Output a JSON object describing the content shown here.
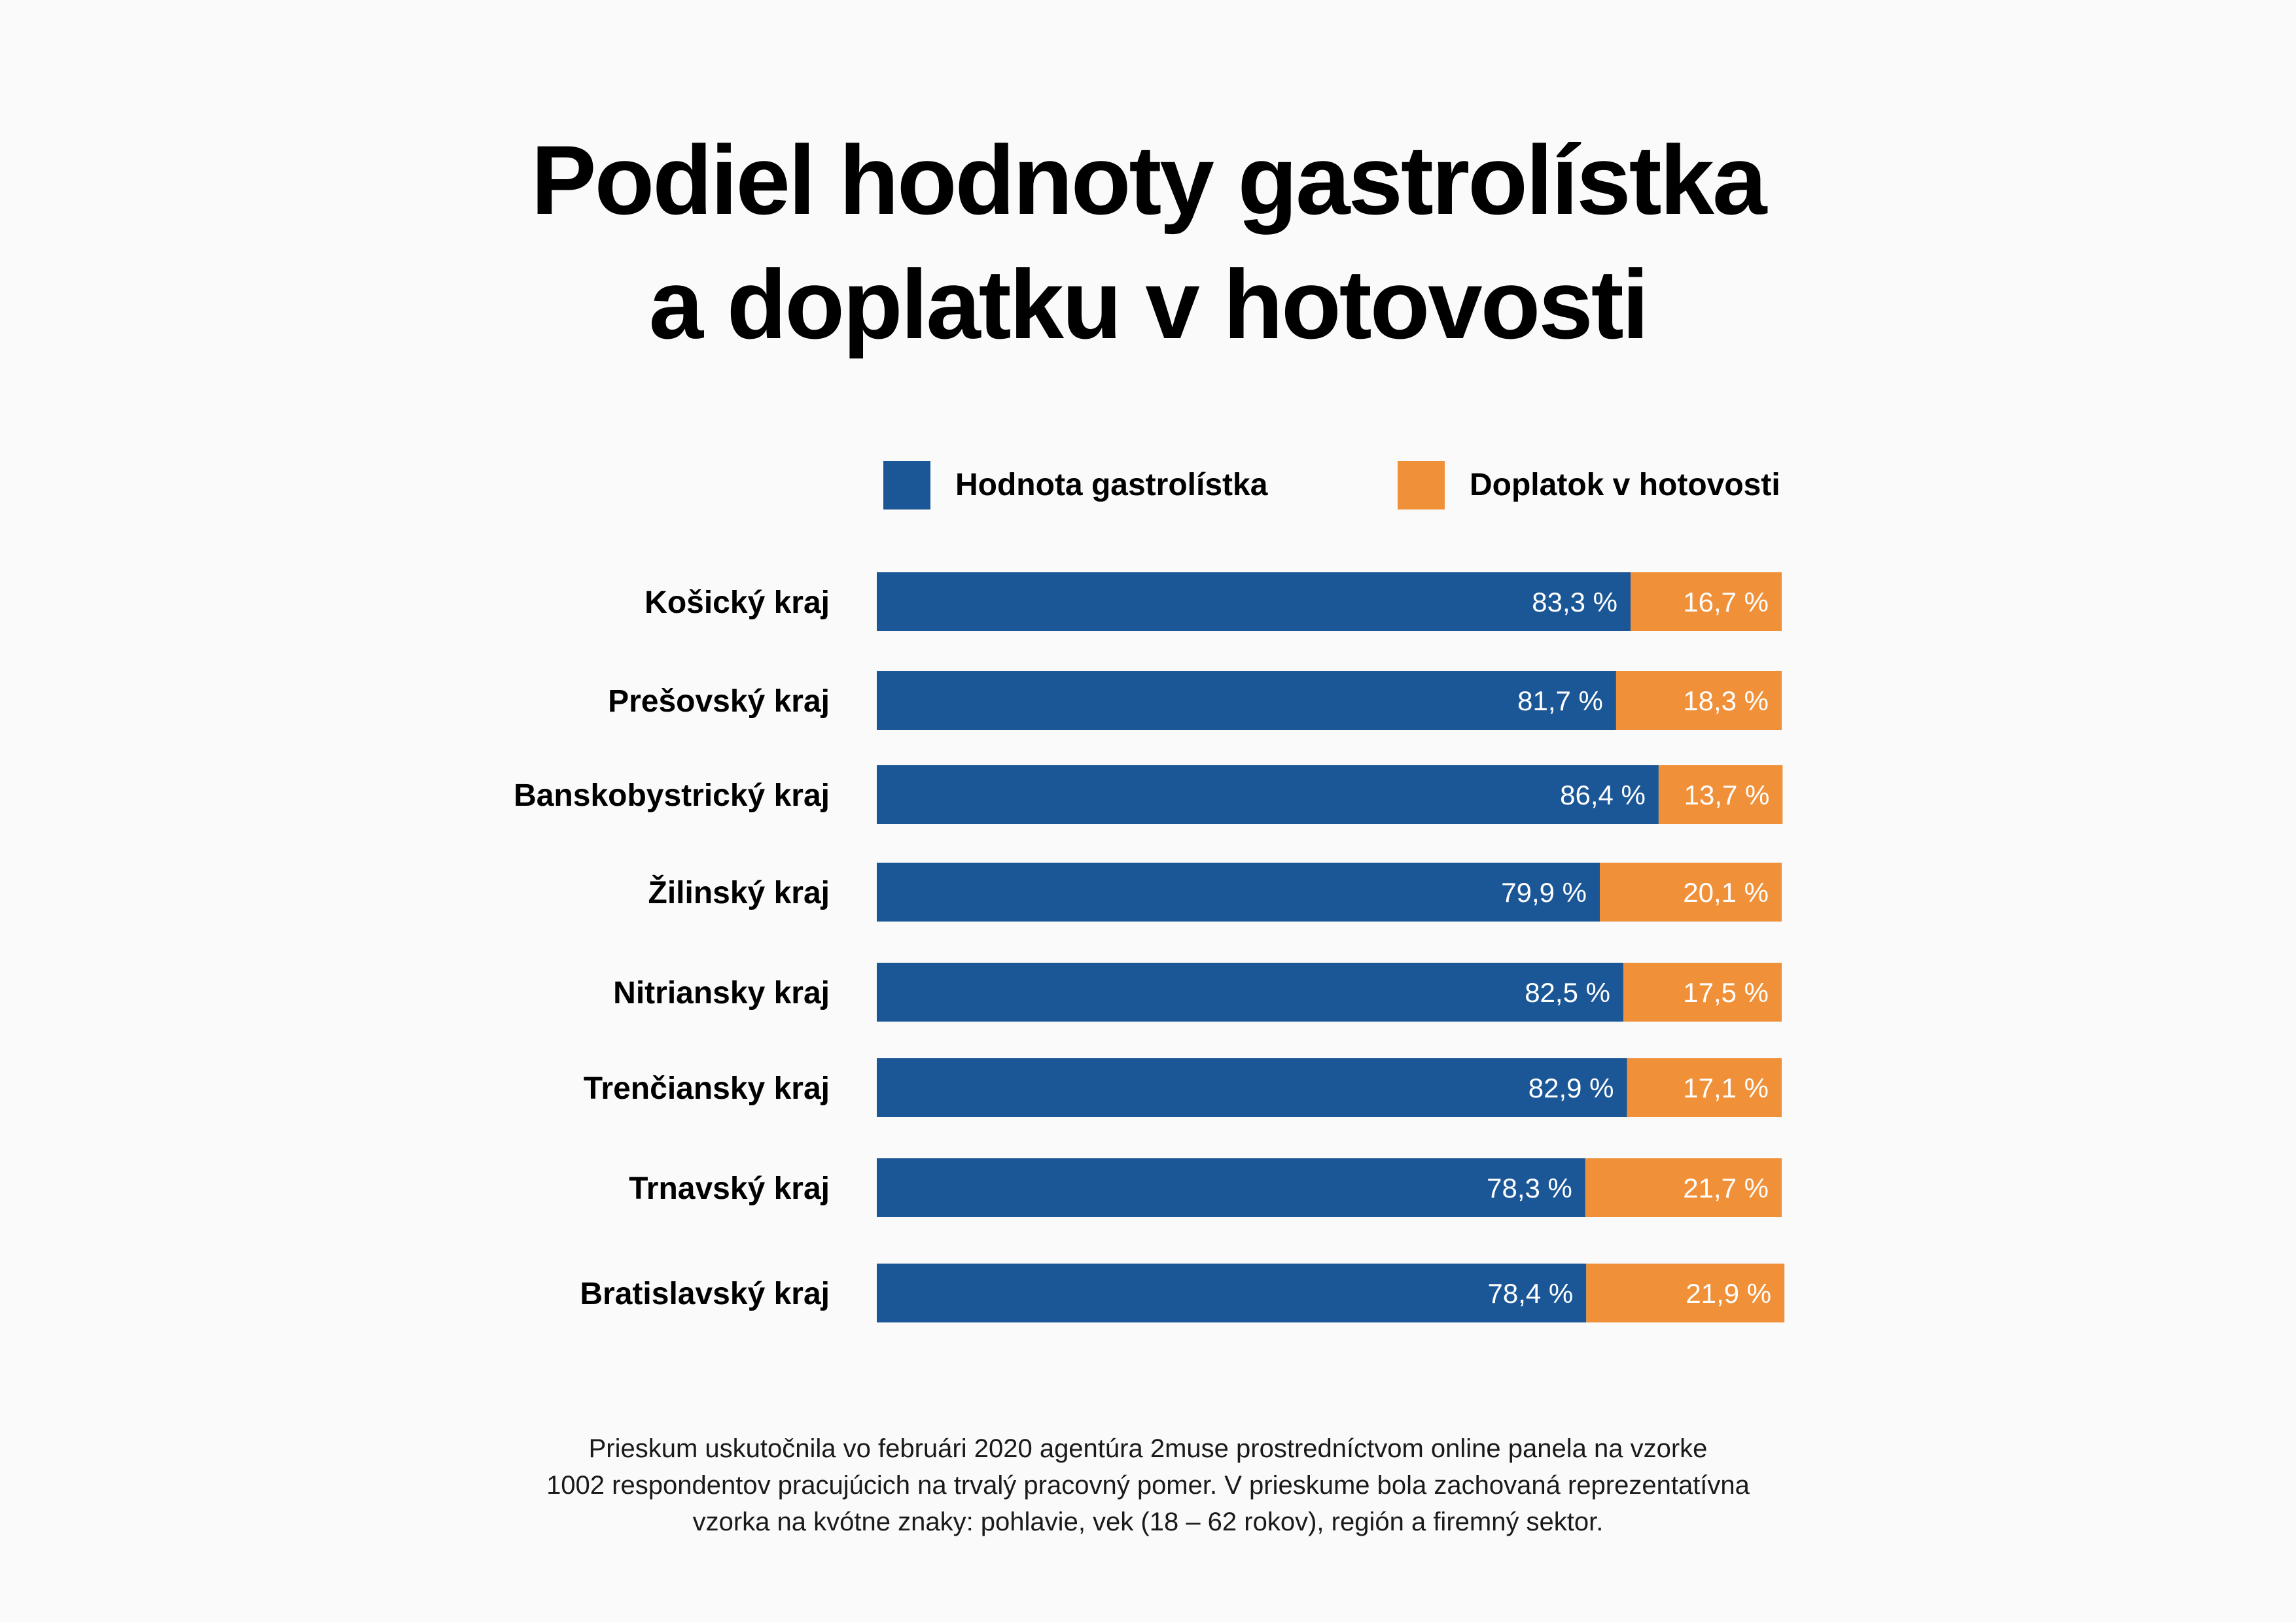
{
  "colors": {
    "blue": "#1b5797",
    "orange": "#f0913a",
    "background": "#fafafa"
  },
  "title_lines": [
    "Podiel hodnoty gastrolístka",
    "a doplatku v hotovosti"
  ],
  "chart_data": {
    "type": "bar",
    "orientation": "horizontal",
    "stacked": true,
    "title": "Podiel hodnoty gastrolístka a doplatku v hotovosti",
    "categories": [
      "Košický kraj",
      "Prešovský kraj",
      "Banskobystrický kraj",
      "Žilinský kraj",
      "Nitriansky kraj",
      "Trenčiansky kraj",
      "Trnavský kraj",
      "Bratislavský kraj"
    ],
    "series": [
      {
        "name": "Hodnota gastrolístka",
        "color": "#1b5797",
        "values": [
          83.3,
          81.7,
          86.4,
          79.9,
          82.5,
          82.9,
          78.3,
          78.4
        ],
        "labels": [
          "83,3 %",
          "81,7 %",
          "86,4 %",
          "79,9 %",
          "82,5 %",
          "82,9 %",
          "78,3 %",
          "78,4 %"
        ]
      },
      {
        "name": "Doplatok v hotovosti",
        "color": "#f0913a",
        "values": [
          16.7,
          18.3,
          13.7,
          20.1,
          17.5,
          17.1,
          21.7,
          21.9
        ],
        "labels": [
          "16,7 %",
          "18,3 %",
          "13,7 %",
          "20,1 %",
          "17,5 %",
          "17,1 %",
          "21,7 %",
          "21,9 %"
        ]
      }
    ],
    "legend_position": "top-right",
    "grid": false
  },
  "footnote_lines": [
    "Prieskum uskutočnila vo februári 2020 agentúra 2muse prostredníctvom online panela na vzorke",
    "1002 respondentov pracujúcich na trvalý pracovný pomer. V prieskume bola zachovaná reprezentatívna",
    "vzorka na kvótne znaky: pohlavie, vek (18 – 62 rokov), región a firemný sektor."
  ]
}
